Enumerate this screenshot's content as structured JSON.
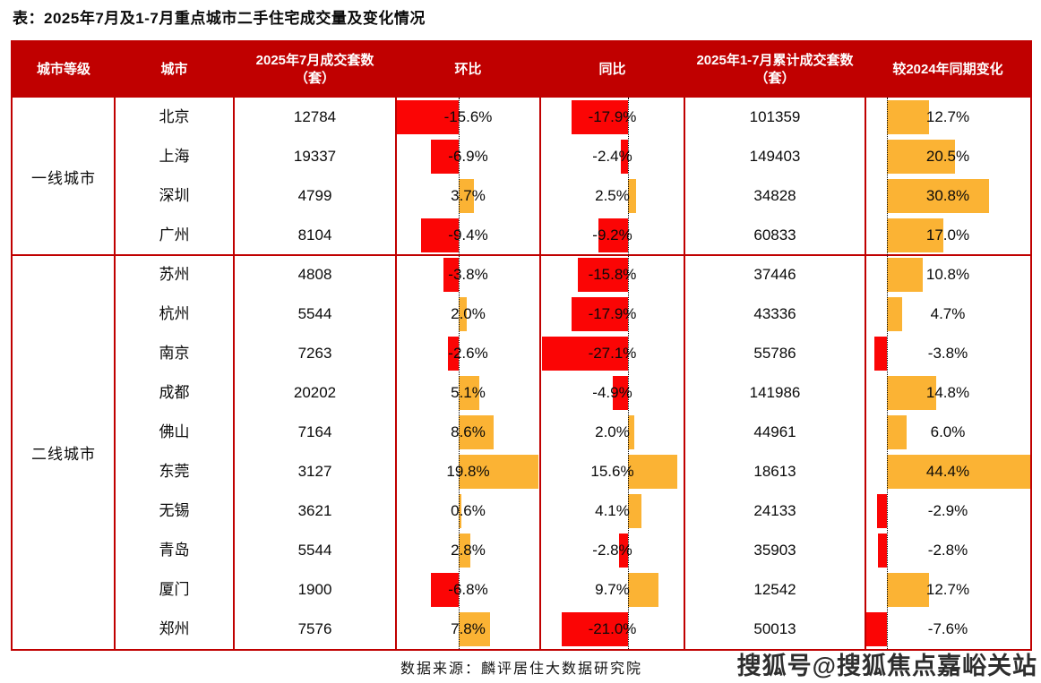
{
  "title": "表：2025年7月及1-7月重点城市二手住宅成交量及变化情况",
  "source": "数据来源：麟评居住大数据研究院",
  "watermark": "搜狐号@搜狐焦点嘉峪关站",
  "colors": {
    "header_bg": "#C00000",
    "border": "#C00000",
    "bar_negative": "#FB0505",
    "bar_positive": "#FBB334",
    "header_text": "#FFFFFF",
    "body_text": "#0A0A0A"
  },
  "table": {
    "columns": [
      "城市等级",
      "城市",
      "2025年7月成交套数（套）",
      "环比",
      "同比",
      "2025年1-7月累计成交套数（套）",
      "较2024年同期变化"
    ],
    "groups": [
      {
        "tier": "一线城市",
        "cities": [
          {
            "city": "北京",
            "jul_volume": "12784",
            "mom": -15.6,
            "mom_label": "-15.6%",
            "yoy": -17.9,
            "yoy_label": "-17.9%",
            "cum_volume": "101359",
            "cum_change": 12.7,
            "cum_change_label": "12.7%"
          },
          {
            "city": "上海",
            "jul_volume": "19337",
            "mom": -6.9,
            "mom_label": "-6.9%",
            "yoy": -2.4,
            "yoy_label": "-2.4%",
            "cum_volume": "149403",
            "cum_change": 20.5,
            "cum_change_label": "20.5%"
          },
          {
            "city": "深圳",
            "jul_volume": "4799",
            "mom": 3.7,
            "mom_label": "3.7%",
            "yoy": 2.5,
            "yoy_label": "2.5%",
            "cum_volume": "34828",
            "cum_change": 30.8,
            "cum_change_label": "30.8%"
          },
          {
            "city": "广州",
            "jul_volume": "8104",
            "mom": -9.4,
            "mom_label": "-9.4%",
            "yoy": -9.2,
            "yoy_label": "-9.2%",
            "cum_volume": "60833",
            "cum_change": 17.0,
            "cum_change_label": "17.0%"
          }
        ]
      },
      {
        "tier": "二线城市",
        "cities": [
          {
            "city": "苏州",
            "jul_volume": "4808",
            "mom": -3.8,
            "mom_label": "-3.8%",
            "yoy": -15.8,
            "yoy_label": "-15.8%",
            "cum_volume": "37446",
            "cum_change": 10.8,
            "cum_change_label": "10.8%"
          },
          {
            "city": "杭州",
            "jul_volume": "5544",
            "mom": 2.0,
            "mom_label": "2.0%",
            "yoy": -17.9,
            "yoy_label": "-17.9%",
            "cum_volume": "43336",
            "cum_change": 4.7,
            "cum_change_label": "4.7%"
          },
          {
            "city": "南京",
            "jul_volume": "7263",
            "mom": -2.6,
            "mom_label": "-2.6%",
            "yoy": -27.1,
            "yoy_label": "-27.1%",
            "cum_volume": "55786",
            "cum_change": -3.8,
            "cum_change_label": "-3.8%"
          },
          {
            "city": "成都",
            "jul_volume": "20202",
            "mom": 5.1,
            "mom_label": "5.1%",
            "yoy": -4.9,
            "yoy_label": "-4.9%",
            "cum_volume": "141986",
            "cum_change": 14.8,
            "cum_change_label": "14.8%"
          },
          {
            "city": "佛山",
            "jul_volume": "7164",
            "mom": 8.6,
            "mom_label": "8.6%",
            "yoy": 2.0,
            "yoy_label": "2.0%",
            "cum_volume": "44961",
            "cum_change": 6.0,
            "cum_change_label": "6.0%"
          },
          {
            "city": "东莞",
            "jul_volume": "3127",
            "mom": 19.8,
            "mom_label": "19.8%",
            "yoy": 15.6,
            "yoy_label": "15.6%",
            "cum_volume": "18613",
            "cum_change": 44.4,
            "cum_change_label": "44.4%"
          },
          {
            "city": "无锡",
            "jul_volume": "3621",
            "mom": 0.6,
            "mom_label": "0.6%",
            "yoy": 4.1,
            "yoy_label": "4.1%",
            "cum_volume": "24133",
            "cum_change": -2.9,
            "cum_change_label": "-2.9%"
          },
          {
            "city": "青岛",
            "jul_volume": "5544",
            "mom": 2.8,
            "mom_label": "2.8%",
            "yoy": -2.8,
            "yoy_label": "-2.8%",
            "cum_volume": "35903",
            "cum_change": -2.8,
            "cum_change_label": "-2.8%"
          },
          {
            "city": "厦门",
            "jul_volume": "1900",
            "mom": -6.8,
            "mom_label": "-6.8%",
            "yoy": 9.7,
            "yoy_label": "9.7%",
            "cum_volume": "12542",
            "cum_change": 12.7,
            "cum_change_label": "12.7%"
          },
          {
            "city": "郑州",
            "jul_volume": "7576",
            "mom": 7.8,
            "mom_label": "7.8%",
            "yoy": -21.0,
            "yoy_label": "-21.0%",
            "cum_volume": "50013",
            "cum_change": -7.6,
            "cum_change_label": "-7.6%"
          }
        ]
      }
    ]
  },
  "chart_data": {
    "type": "table",
    "title": "表：2025年7月及1-7月重点城市二手住宅成交量及变化情况",
    "columns": [
      "城市等级",
      "城市",
      "2025年7月成交套数（套）",
      "环比",
      "同比",
      "2025年1-7月累计成交套数（套）",
      "较2024年同期变化"
    ],
    "categories": [
      "北京",
      "上海",
      "深圳",
      "广州",
      "苏州",
      "杭州",
      "南京",
      "成都",
      "佛山",
      "东莞",
      "无锡",
      "青岛",
      "厦门",
      "郑州"
    ],
    "city_tiers": {
      "一线城市": [
        "北京",
        "上海",
        "深圳",
        "广州"
      ],
      "二线城市": [
        "苏州",
        "杭州",
        "南京",
        "成都",
        "佛山",
        "东莞",
        "无锡",
        "青岛",
        "厦门",
        "郑州"
      ]
    },
    "series": [
      {
        "name": "2025年7月成交套数（套）",
        "values": [
          12784,
          19337,
          4799,
          8104,
          4808,
          5544,
          7263,
          20202,
          7164,
          3127,
          3621,
          5544,
          1900,
          7576
        ]
      },
      {
        "name": "环比",
        "unit": "%",
        "values": [
          -15.6,
          -6.9,
          3.7,
          -9.4,
          -3.8,
          2.0,
          -2.6,
          5.1,
          8.6,
          19.8,
          0.6,
          2.8,
          -6.8,
          7.8
        ]
      },
      {
        "name": "同比",
        "unit": "%",
        "values": [
          -17.9,
          -2.4,
          2.5,
          -9.2,
          -15.8,
          -17.9,
          -27.1,
          -4.9,
          2.0,
          15.6,
          4.1,
          -2.8,
          9.7,
          -21.0
        ]
      },
      {
        "name": "2025年1-7月累计成交套数（套）",
        "values": [
          101359,
          149403,
          34828,
          60833,
          37446,
          43336,
          55786,
          141986,
          44961,
          18613,
          24133,
          35903,
          12542,
          50013
        ]
      },
      {
        "name": "较2024年同期变化",
        "unit": "%",
        "values": [
          12.7,
          20.5,
          30.8,
          17.0,
          10.8,
          4.7,
          -3.8,
          14.8,
          6.0,
          44.4,
          -2.9,
          -2.8,
          12.7,
          -7.6
        ]
      }
    ],
    "bar_columns": [
      "环比",
      "同比",
      "较2024年同期变化"
    ],
    "bar_colors": {
      "positive": "#FBB334",
      "negative": "#FB0505"
    },
    "legend": "none",
    "source": "数据来源：麟评居住大数据研究院"
  }
}
